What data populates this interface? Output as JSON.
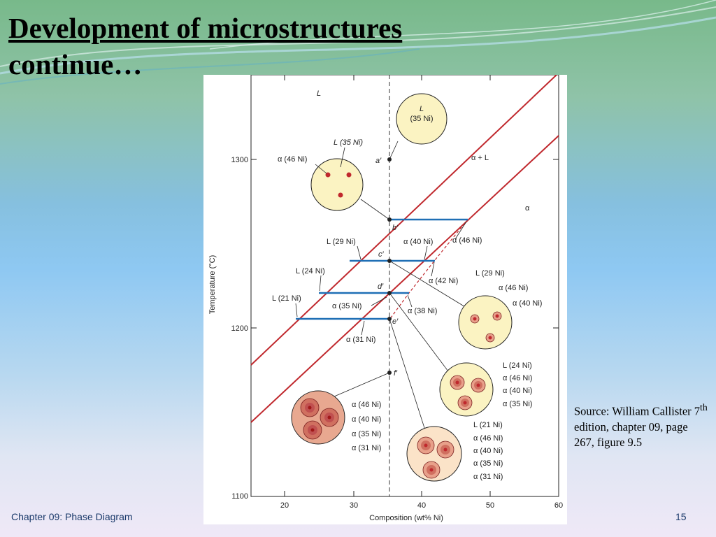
{
  "slide": {
    "title_line1": "Development of microstructures",
    "title_line2": "continue…",
    "source_prefix": "Source: William Callister 7",
    "source_sup": "th",
    "source_suffix": " edition, chapter 09, page 267, figure 9.5",
    "footer_chapter": "Chapter 09: Phase Diagram",
    "page_number": "15"
  },
  "diagram": {
    "x_axis_label": "Composition (wt% Ni)",
    "y_axis_label": "Temperature (°C)",
    "x_ticks": [
      "20",
      "30",
      "40",
      "50",
      "60"
    ],
    "y_ticks": [
      "1300",
      "1200",
      "1100"
    ],
    "region_L": "L",
    "region_two_phase": "α + L",
    "region_alpha": "α",
    "points": [
      "a′",
      "b′",
      "c′",
      "d′",
      "e′",
      "f′"
    ],
    "tie_line_labels": {
      "b_alpha": "α (46 Ni)",
      "b_liquid": "L (35 Ni)",
      "c_liquid": "L (29 Ni)",
      "c_alpha": "α (40 Ni)",
      "c_alpha_outer": "α (42 Ni)",
      "d_liquid": "L (24 Ni)",
      "d_alpha": "α (35 Ni)",
      "d_alpha_outer": "α (38 Ni)",
      "e_liquid": "L (21 Ni)",
      "e_alpha": "α (31 Ni)",
      "b_alpha_right": "α (46 Ni)"
    },
    "circle_a": [
      "L",
      "(35 Ni)"
    ],
    "circle_b": [
      "L (35 Ni)",
      "α (46 Ni)"
    ],
    "circle_c": [
      "L (29 Ni)",
      "α (46 Ni)",
      "α (40 Ni)"
    ],
    "circle_d": [
      "L (24 Ni)",
      "α (46 Ni)",
      "α (40 Ni)",
      "α (35 Ni)"
    ],
    "circle_e": [
      "L (21 Ni)",
      "α (46 Ni)",
      "α (40 Ni)",
      "α (35 Ni)",
      "α (31 Ni)"
    ],
    "circle_f": [
      "α (46 Ni)",
      "α (40 Ni)",
      "α (35 Ni)",
      "α (31 Ni)"
    ],
    "colors": {
      "liquidus": "#c0282d",
      "tie_line": "#1f6fb5",
      "circle_fill": "#fbf3c2",
      "particle": "#c0282d"
    }
  }
}
